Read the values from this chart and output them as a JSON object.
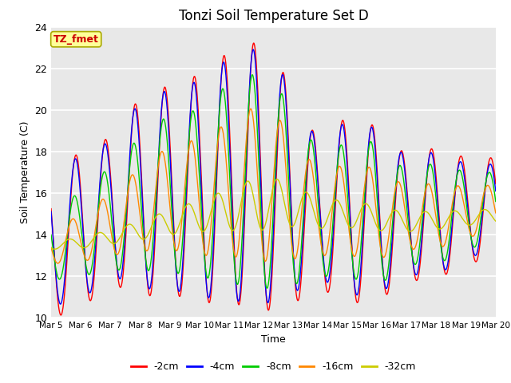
{
  "title": "Tonzi Soil Temperature Set D",
  "xlabel": "Time",
  "ylabel": "Soil Temperature (C)",
  "ylim": [
    10,
    24
  ],
  "annotation_text": "TZ_fmet",
  "annotation_color": "#cc0000",
  "annotation_bg": "#ffff99",
  "annotation_border": "#aaaa00",
  "series_colors": [
    "#ff0000",
    "#0000ff",
    "#00cc00",
    "#ff8800",
    "#cccc00"
  ],
  "series_labels": [
    "-2cm",
    "-4cm",
    "-8cm",
    "-16cm",
    "-32cm"
  ],
  "plot_bg": "#e8e8e8",
  "grid_color": "#ffffff",
  "num_days": 15,
  "points_per_day": 144,
  "x_tick_labels": [
    "Mar 5",
    "Mar 6",
    "Mar 7",
    "Mar 8",
    "Mar 9",
    "Mar 10",
    "Mar 11",
    "Mar 12",
    "Mar 13",
    "Mar 14",
    "Mar 15",
    "Mar 16",
    "Mar 17",
    "Mar 18",
    "Mar 19",
    "Mar 20"
  ],
  "mean_2cm": [
    13.5,
    14.2,
    15.2,
    15.8,
    16.2,
    16.2,
    16.8,
    16.8,
    16.0,
    15.0,
    15.2,
    15.0,
    14.8,
    15.0,
    15.2,
    15.2
  ],
  "mean_4cm": [
    13.8,
    14.3,
    15.3,
    15.9,
    16.2,
    16.2,
    16.7,
    16.8,
    16.2,
    15.2,
    15.3,
    15.1,
    14.9,
    15.0,
    15.2,
    15.2
  ],
  "mean_8cm": [
    13.6,
    14.0,
    14.8,
    15.5,
    16.0,
    16.0,
    16.5,
    16.6,
    16.0,
    15.0,
    15.2,
    15.0,
    14.8,
    15.0,
    15.2,
    15.2
  ],
  "mean_16cm": [
    13.5,
    13.8,
    14.5,
    15.2,
    15.8,
    15.8,
    16.2,
    16.5,
    16.0,
    15.0,
    15.2,
    15.0,
    14.8,
    14.9,
    15.1,
    15.2
  ],
  "mean_32cm": [
    13.5,
    13.6,
    13.9,
    14.2,
    14.6,
    14.9,
    15.2,
    15.5,
    15.5,
    15.0,
    15.0,
    14.8,
    14.6,
    14.7,
    14.8,
    14.9
  ],
  "amp_2cm": [
    3.5,
    3.8,
    3.5,
    4.8,
    5.0,
    5.5,
    6.0,
    6.5,
    5.5,
    3.5,
    4.5,
    4.2,
    3.0,
    3.2,
    2.5,
    2.5
  ],
  "amp_4cm": [
    3.2,
    3.5,
    3.2,
    4.5,
    4.8,
    5.2,
    5.8,
    6.2,
    5.2,
    3.2,
    4.2,
    4.0,
    2.8,
    3.0,
    2.2,
    2.2
  ],
  "amp_8cm": [
    1.8,
    2.0,
    2.5,
    3.2,
    3.8,
    4.0,
    4.8,
    5.2,
    4.5,
    3.0,
    3.2,
    3.5,
    2.2,
    2.5,
    1.8,
    1.8
  ],
  "amp_16cm": [
    0.9,
    1.1,
    1.5,
    2.0,
    2.5,
    2.8,
    3.2,
    3.8,
    3.2,
    2.0,
    2.2,
    2.2,
    1.5,
    1.6,
    1.2,
    1.2
  ],
  "amp_32cm": [
    0.2,
    0.25,
    0.35,
    0.45,
    0.6,
    0.75,
    1.0,
    1.3,
    1.1,
    0.7,
    0.65,
    0.6,
    0.45,
    0.45,
    0.35,
    0.35
  ],
  "phase_2cm": 0.0,
  "phase_4cm": 0.1,
  "phase_8cm": 0.3,
  "phase_16cm": 0.65,
  "phase_32cm": 1.3
}
